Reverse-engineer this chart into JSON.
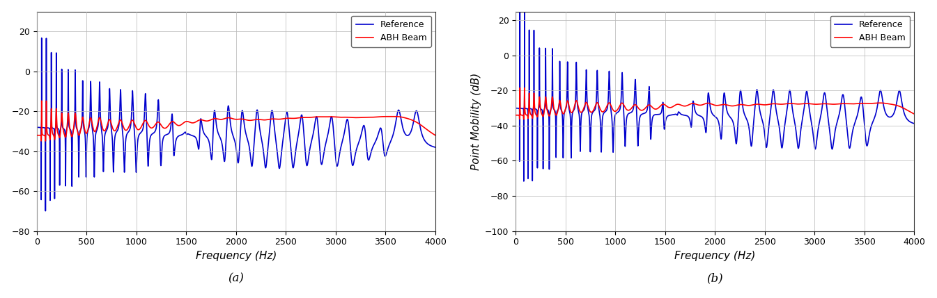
{
  "blue_color": "#0000CD",
  "red_color": "#FF0000",
  "background_color": "#FFFFFF",
  "grid_color": "#BBBBBB",
  "xlabel": "Frequency (Hz)",
  "ylabel_b": "Point Mobility (dB)",
  "legend_entries": [
    "Reference",
    "ABH Beam"
  ],
  "label_a": "(a)",
  "label_b": "(b)",
  "xlim": [
    0,
    4000
  ],
  "ylim_a": [
    -80,
    30
  ],
  "ylim_b": [
    -100,
    25
  ],
  "yticks_a": [
    -80,
    -60,
    -40,
    -20,
    0,
    20
  ],
  "yticks_b": [
    -100,
    -80,
    -60,
    -40,
    -20,
    0,
    20
  ],
  "xticks": [
    0,
    500,
    1000,
    1500,
    2000,
    2500,
    3000,
    3500,
    4000
  ],
  "figsize": [
    13.45,
    4.29
  ],
  "dpi": 100,
  "linewidth": 1.2,
  "fontsize_label": 11,
  "fontsize_tick": 9,
  "fontsize_legend": 9,
  "fontsize_sublabel": 12
}
